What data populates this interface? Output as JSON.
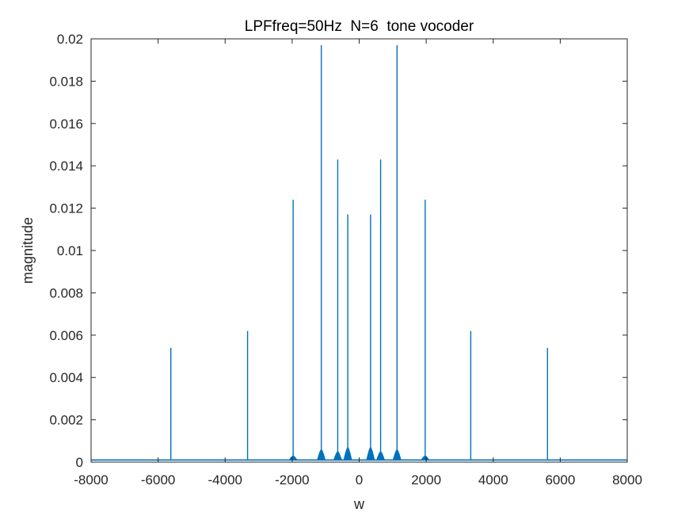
{
  "chart_data": {
    "type": "line",
    "title": "LPFfreq=50Hz  N=6  tone vocoder",
    "xlabel": "w",
    "ylabel": "magnitude",
    "xlim": [
      -8000,
      8000
    ],
    "ylim": [
      0,
      0.02
    ],
    "xticks": [
      -8000,
      -6000,
      -4000,
      -2000,
      0,
      2000,
      4000,
      6000,
      8000
    ],
    "xtick_labels": [
      "-8000",
      "-6000",
      "-4000",
      "-2000",
      "0",
      "2000",
      "4000",
      "6000",
      "8000"
    ],
    "yticks": [
      0,
      0.002,
      0.004,
      0.006,
      0.008,
      0.01,
      0.012,
      0.014,
      0.016,
      0.018,
      0.02
    ],
    "ytick_labels": [
      "0",
      "0.002",
      "0.004",
      "0.006",
      "0.008",
      "0.01",
      "0.012",
      "0.014",
      "0.016",
      "0.018",
      "0.02"
    ],
    "grid": false,
    "legend": "none",
    "line_color": "#0072BD",
    "baseline_level": 0.0001,
    "series": [
      {
        "x": [
          -5620,
          -3330,
          -1970,
          -1130,
          -640,
          -340,
          340,
          640,
          1130,
          1970,
          3330,
          5620
        ],
        "values": [
          0.0054,
          0.0062,
          0.0124,
          0.0197,
          0.0143,
          0.0117,
          0.0117,
          0.0143,
          0.0197,
          0.0124,
          0.0062,
          0.0054
        ],
        "skirt_values": [
          0.0001,
          0.0001,
          0.0003,
          0.0006,
          0.0005,
          0.0007,
          0.0007,
          0.0005,
          0.0006,
          0.0003,
          0.0001,
          0.0001
        ]
      }
    ]
  }
}
